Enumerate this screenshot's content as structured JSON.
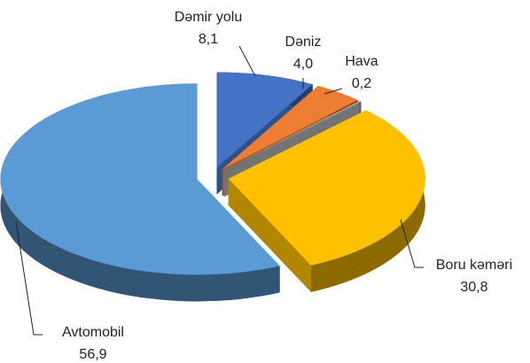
{
  "chart_data": {
    "type": "pie",
    "categories": [
      "Dəmir yolu",
      "Dəniz",
      "Hava",
      "Boru kəməri",
      "Avtomobil"
    ],
    "values": [
      8.1,
      4.0,
      0.2,
      30.8,
      56.9
    ],
    "value_labels": [
      "8,1",
      "4,0",
      "0,2",
      "30,8",
      "56,9"
    ],
    "colors": [
      "#4472c4",
      "#ed7d31",
      "#a5a5a5",
      "#ffc000",
      "#5b9bd5"
    ]
  }
}
